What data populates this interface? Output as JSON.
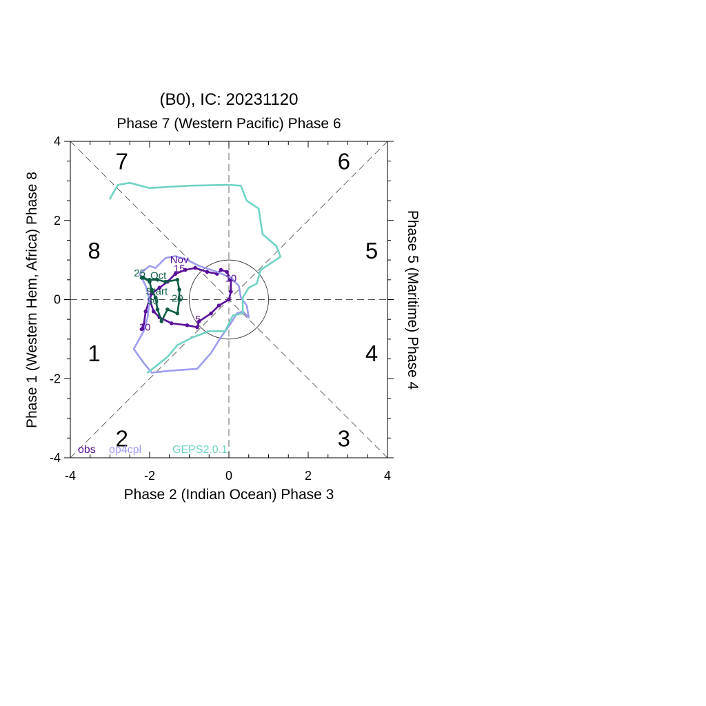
{
  "chart_data": {
    "type": "line",
    "title": "(B0), IC: 20231120",
    "top_label": "Phase 7 (Western Pacific) Phase 6",
    "xlabel": "Phase 2 (Indian Ocean) Phase 3",
    "ylabel_left": "Phase 1 (Western Hem, Africa) Phase 8",
    "ylabel_right": "Phase 5 (Maritime) Phase 4",
    "xlim": [
      -4,
      4
    ],
    "ylim": [
      -4,
      4
    ],
    "x_ticks": [
      -4,
      -2,
      0,
      2,
      4
    ],
    "y_ticks": [
      -4,
      -2,
      0,
      2,
      4
    ],
    "x_tick_labels": [
      "-4",
      "-2",
      "0",
      "2",
      "4"
    ],
    "y_tick_labels": [
      "-4",
      "-2",
      "0",
      "2",
      "4"
    ],
    "unit_circle_radius": 1,
    "phase_labels": [
      {
        "text": "7",
        "x": -2.7,
        "y": 3.5
      },
      {
        "text": "6",
        "x": 2.9,
        "y": 3.5
      },
      {
        "text": "8",
        "x": -3.4,
        "y": 1.25
      },
      {
        "text": "5",
        "x": 3.6,
        "y": 1.25
      },
      {
        "text": "1",
        "x": -3.4,
        "y": -1.35
      },
      {
        "text": "4",
        "x": 3.6,
        "y": -1.35
      },
      {
        "text": "2",
        "x": -2.7,
        "y": -3.5
      },
      {
        "text": "3",
        "x": 2.9,
        "y": -3.5
      }
    ],
    "series": [
      {
        "name": "obs",
        "color": "#5a0f9a",
        "markers": true,
        "points": [
          [
            -2.2,
            -0.75
          ],
          [
            -2.15,
            -0.65
          ],
          [
            -2.1,
            -0.3
          ],
          [
            -2.0,
            0.0
          ],
          [
            -1.95,
            0.15
          ],
          [
            -1.75,
            0.3
          ],
          [
            -1.55,
            0.45
          ],
          [
            -1.35,
            0.65
          ],
          [
            -1.1,
            0.75
          ],
          [
            -0.85,
            0.8
          ],
          [
            -0.55,
            0.7
          ],
          [
            -0.3,
            0.65
          ],
          [
            -0.2,
            0.75
          ],
          [
            -0.05,
            0.7
          ],
          [
            0.05,
            0.5
          ],
          [
            0.05,
            0.2
          ],
          [
            0.0,
            0.0
          ],
          [
            -0.25,
            -0.15
          ],
          [
            -0.45,
            -0.35
          ],
          [
            -0.75,
            -0.55
          ],
          [
            -0.8,
            -0.7
          ],
          [
            -1.05,
            -0.65
          ],
          [
            -1.45,
            -0.6
          ],
          [
            -1.75,
            -0.45
          ],
          [
            -1.9,
            -0.3
          ],
          [
            -2.0,
            0.0
          ]
        ]
      },
      {
        "name": "op4cpl",
        "color": "#9d9cf0",
        "markers": false,
        "points": [
          [
            -1.85,
            0.8
          ],
          [
            -1.6,
            1.05
          ],
          [
            -1.35,
            1.1
          ],
          [
            -1.05,
            1.0
          ],
          [
            -0.75,
            0.85
          ],
          [
            -0.3,
            0.7
          ],
          [
            0.05,
            0.55
          ],
          [
            0.25,
            0.35
          ],
          [
            0.3,
            0.05
          ],
          [
            0.45,
            -0.15
          ],
          [
            0.5,
            -0.45
          ],
          [
            0.35,
            -0.3
          ],
          [
            0.2,
            -0.35
          ],
          [
            0.05,
            -0.6
          ],
          [
            -0.2,
            -0.95
          ],
          [
            -0.45,
            -1.35
          ],
          [
            -0.8,
            -1.75
          ],
          [
            -1.5,
            -1.8
          ],
          [
            -1.95,
            -1.85
          ],
          [
            -2.15,
            -1.6
          ],
          [
            -2.4,
            -1.25
          ],
          [
            -2.15,
            -0.8
          ],
          [
            -2.05,
            -0.45
          ],
          [
            -2.0,
            0.0
          ],
          [
            -2.1,
            0.35
          ],
          [
            -2.25,
            0.65
          ],
          [
            -2.0,
            0.85
          ],
          [
            -1.85,
            0.8
          ]
        ]
      },
      {
        "name": "GEPS2.0.1",
        "color": "#6fd3c4",
        "markers": false,
        "points": [
          [
            -3.0,
            2.55
          ],
          [
            -2.8,
            2.9
          ],
          [
            -2.5,
            2.95
          ],
          [
            -2.0,
            2.82
          ],
          [
            -1.0,
            2.88
          ],
          [
            0.0,
            2.9
          ],
          [
            0.3,
            2.88
          ],
          [
            0.45,
            2.5
          ],
          [
            0.75,
            2.3
          ],
          [
            0.85,
            1.65
          ],
          [
            1.2,
            1.35
          ],
          [
            1.3,
            1.08
          ],
          [
            1.0,
            0.88
          ],
          [
            0.8,
            0.75
          ],
          [
            0.7,
            0.4
          ],
          [
            0.5,
            0.3
          ],
          [
            0.35,
            0.05
          ],
          [
            0.35,
            -0.35
          ],
          [
            0.1,
            -0.4
          ],
          [
            -0.1,
            -0.8
          ],
          [
            -0.5,
            -0.8
          ],
          [
            -0.9,
            -0.95
          ],
          [
            -1.3,
            -1.15
          ],
          [
            -1.55,
            -1.45
          ],
          [
            -1.8,
            -1.65
          ],
          [
            -2.05,
            -1.85
          ]
        ]
      },
      {
        "name": "Oct",
        "color": "#0e5c46",
        "markers": true,
        "points": [
          [
            -2.2,
            0.55
          ],
          [
            -2.0,
            0.5
          ],
          [
            -1.8,
            0.5
          ],
          [
            -1.6,
            0.45
          ],
          [
            -1.3,
            0.5
          ],
          [
            -1.25,
            0.25
          ],
          [
            -1.25,
            0.0
          ],
          [
            -1.3,
            -0.35
          ],
          [
            -1.55,
            -0.25
          ],
          [
            -1.7,
            -0.55
          ],
          [
            -1.8,
            -0.25
          ],
          [
            -1.85,
            0.05
          ],
          [
            -1.95,
            0.25
          ],
          [
            -2.0,
            0.45
          ],
          [
            -2.15,
            0.55
          ]
        ]
      }
    ],
    "annotations": [
      {
        "text": "Nov",
        "x": -1.25,
        "y": 0.92,
        "color": "#5a0f9a"
      },
      {
        "text": "15",
        "x": -1.25,
        "y": 0.7,
        "color": "#5a0f9a"
      },
      {
        "text": "10",
        "x": 0.05,
        "y": 0.45,
        "color": "#5a0f9a"
      },
      {
        "text": "5",
        "x": -0.78,
        "y": -0.58,
        "color": "#5a0f9a"
      },
      {
        "text": "30",
        "x": -2.12,
        "y": -0.78,
        "color": "#5a0f9a"
      },
      {
        "text": "25",
        "x": -2.25,
        "y": 0.58,
        "color": "#0e5c46"
      },
      {
        "text": "Oct",
        "x": -1.78,
        "y": 0.52,
        "color": "#0e5c46"
      },
      {
        "text": "Start",
        "x": -1.82,
        "y": 0.12,
        "color": "#0e5c46"
      },
      {
        "text": "30",
        "x": -1.92,
        "y": -0.12,
        "color": "#0e5c46"
      },
      {
        "text": "20",
        "x": -1.3,
        "y": -0.05,
        "color": "#0e5c46"
      }
    ],
    "legend": [
      {
        "text": "obs",
        "color": "#5a0f9a"
      },
      {
        "text": "op4cpl",
        "color": "#9d9cf0"
      },
      {
        "text": "GEPS2.0.1",
        "color": "#6fd3c4"
      }
    ],
    "legend_position": "bottom-left"
  }
}
